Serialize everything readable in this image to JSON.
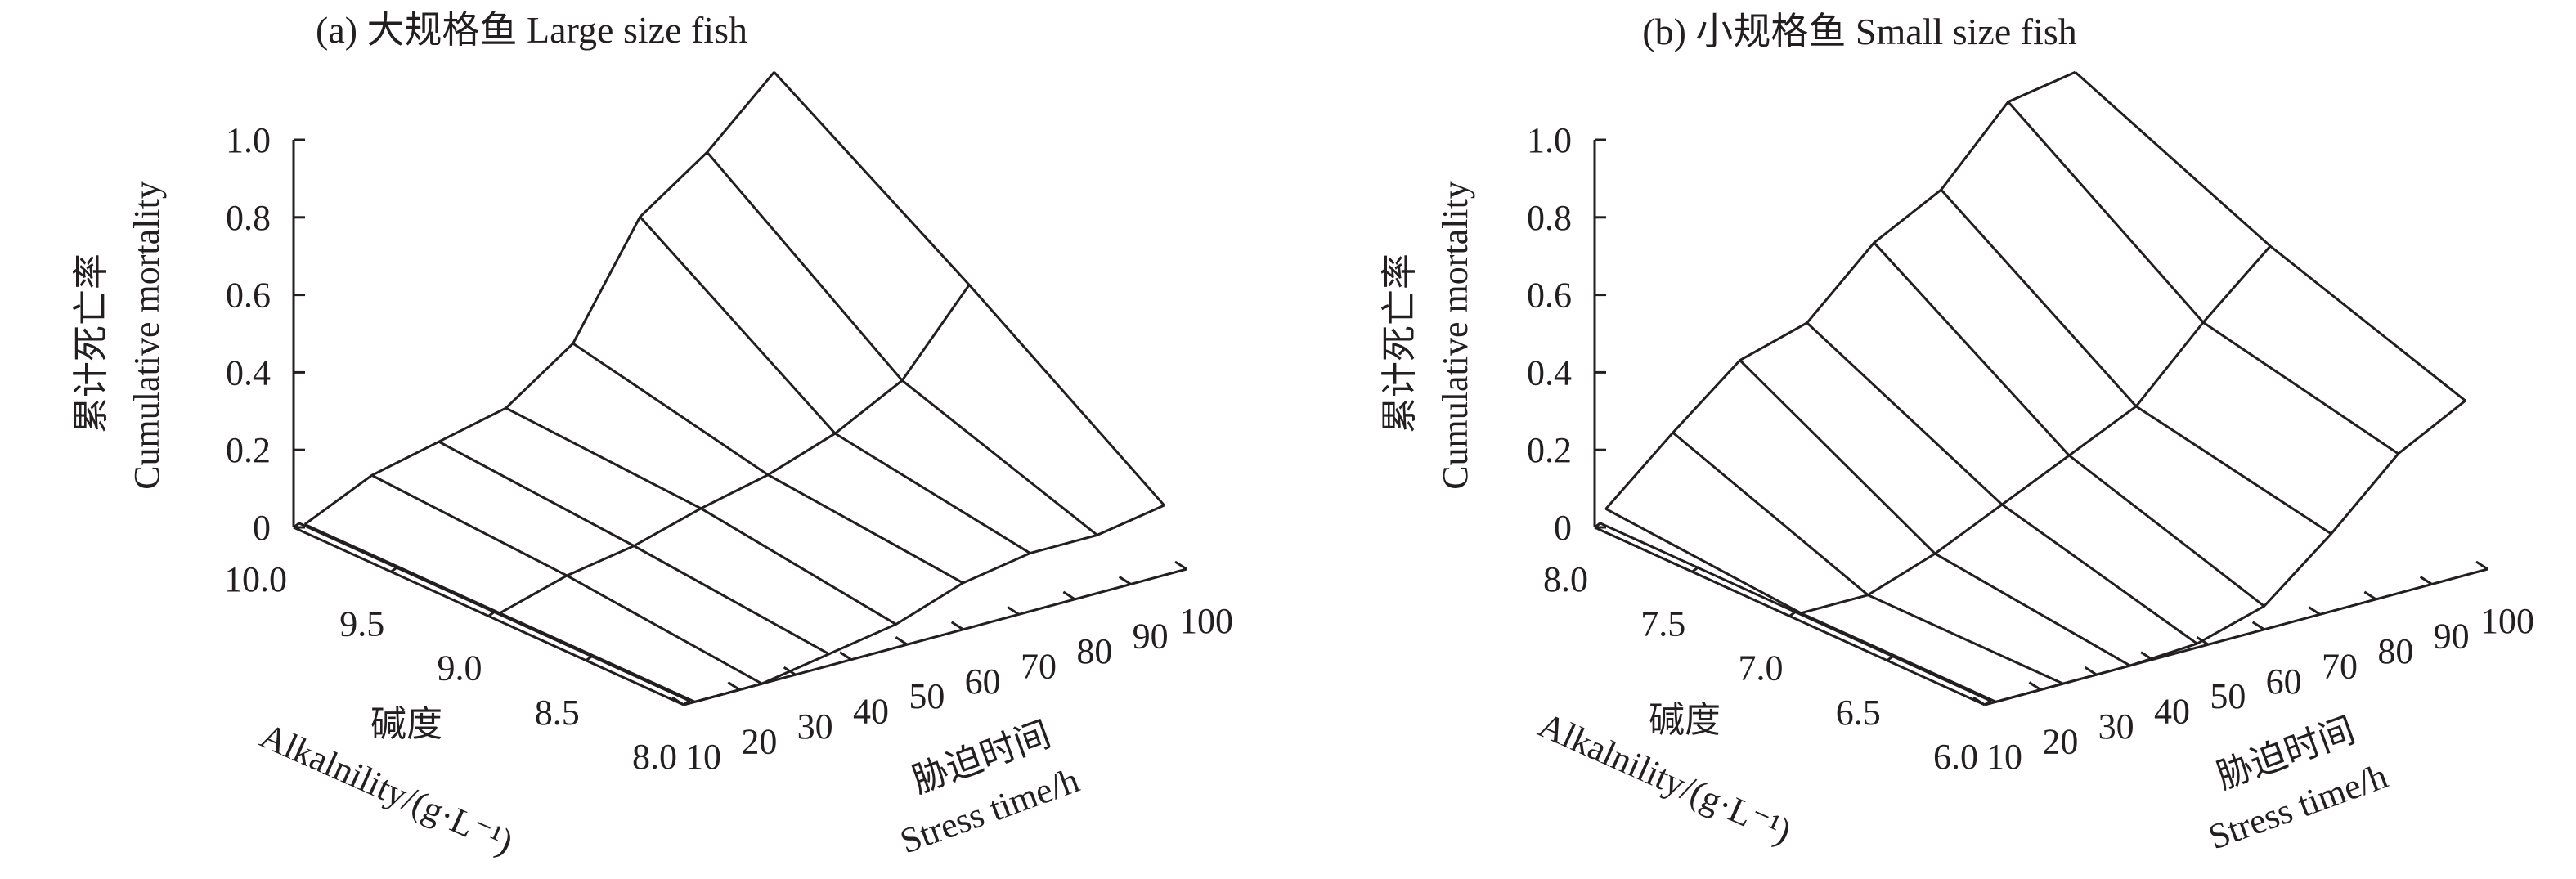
{
  "chart_data": [
    {
      "type": "surface3d-wireframe",
      "title": "(a) 大规格鱼 Large size fish",
      "zlabel_cn": "累计死亡率",
      "zlabel_en": "Cumulative mortality",
      "alk_label_cn": "碱度",
      "alk_label_en": "Alkalnility/(g·L⁻¹)",
      "time_label_cn": "胁迫时间",
      "time_label_en": "Stress time/h",
      "z_ticks": [
        "0",
        "0.2",
        "0.4",
        "0.6",
        "0.8",
        "1.0"
      ],
      "z_tick_values": [
        0,
        0.2,
        0.4,
        0.6,
        0.8,
        1.0
      ],
      "zlim": [
        0,
        1.0
      ],
      "alk_ticks": [
        "10.0",
        "9.5",
        "9.0",
        "8.5",
        "8.0"
      ],
      "alk_tick_values": [
        10.0,
        9.5,
        9.0,
        8.5,
        8.0
      ],
      "time_ticks": [
        "10",
        "20",
        "30",
        "40",
        "50",
        "60",
        "70",
        "80",
        "90",
        "100"
      ],
      "time_tick_values": [
        10,
        20,
        30,
        40,
        50,
        60,
        70,
        80,
        90,
        100
      ],
      "alkalinity": [
        10.0,
        9.0,
        8.0
      ],
      "time": [
        12,
        24,
        36,
        48,
        60,
        72,
        84,
        96
      ],
      "mortality": [
        [
          0.0,
          0.08,
          0.12,
          0.16,
          0.28,
          0.56,
          0.68,
          0.84
        ],
        [
          0.0,
          0.05,
          0.08,
          0.13,
          0.17,
          0.23,
          0.32,
          0.52
        ],
        [
          0.0,
          0.0,
          0.03,
          0.06,
          0.12,
          0.15,
          0.15,
          0.18
        ]
      ]
    },
    {
      "type": "surface3d-wireframe",
      "title": "(b) 小规格鱼 Small size fish",
      "zlabel_cn": "累计死亡率",
      "zlabel_en": "Cumulative mortality",
      "alk_label_cn": "碱度",
      "alk_label_en": "Alkalnility/(g·L⁻¹)",
      "time_label_cn": "胁迫时间",
      "time_label_en": "Stress time/h",
      "z_ticks": [
        "0",
        "0.2",
        "0.4",
        "0.6",
        "0.8",
        "1.0"
      ],
      "z_tick_values": [
        0,
        0.2,
        0.4,
        0.6,
        0.8,
        1.0
      ],
      "zlim": [
        0,
        1.0
      ],
      "alk_ticks": [
        "8.0",
        "7.5",
        "7.0",
        "6.5",
        "6.0"
      ],
      "alk_tick_values": [
        8.0,
        7.5,
        7.0,
        6.5,
        6.0
      ],
      "time_ticks": [
        "10",
        "20",
        "30",
        "40",
        "50",
        "60",
        "70",
        "80",
        "90",
        "100"
      ],
      "time_tick_values": [
        10,
        20,
        30,
        40,
        50,
        60,
        70,
        80,
        90,
        100
      ],
      "alkalinity": [
        8.0,
        7.0,
        6.0
      ],
      "time": [
        12,
        24,
        36,
        48,
        60,
        72,
        84,
        96
      ],
      "mortality": [
        [
          0.04,
          0.19,
          0.33,
          0.38,
          0.54,
          0.63,
          0.81,
          0.84
        ],
        [
          0.0,
          0.0,
          0.06,
          0.14,
          0.22,
          0.3,
          0.47,
          0.62
        ],
        [
          0.0,
          0.0,
          0.0,
          0.01,
          0.06,
          0.2,
          0.36,
          0.45
        ]
      ]
    }
  ]
}
